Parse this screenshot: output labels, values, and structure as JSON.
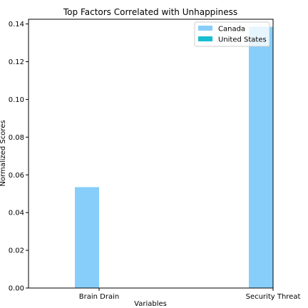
{
  "chart_data": {
    "type": "bar",
    "title": "Top Factors Correlated with Unhappiness",
    "xlabel": "Variables",
    "ylabel": "Normalized Scores",
    "categories": [
      "Brain Drain",
      "Security Threat"
    ],
    "series": [
      {
        "name": "Canada",
        "values": [
          0.0535,
          0.1385
        ],
        "color": "#87CEFA"
      },
      {
        "name": "United States",
        "values": [
          0,
          0
        ],
        "color": "#17BECF"
      }
    ],
    "ylim": [
      0,
      0.1425
    ],
    "yticks": [
      "0.00",
      "0.02",
      "0.04",
      "0.06",
      "0.08",
      "0.10",
      "0.12",
      "0.14"
    ],
    "grid": false,
    "legend": "top-right"
  }
}
